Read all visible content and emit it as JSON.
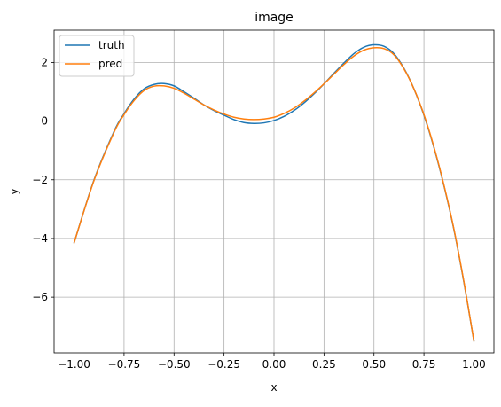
{
  "chart_data": {
    "type": "line",
    "title": "image",
    "xlabel": "x",
    "ylabel": "y",
    "xlim": [
      -1.1,
      1.1
    ],
    "ylim": [
      -7.9,
      3.1
    ],
    "grid": true,
    "legend_position": "top-left",
    "x_ticks": [
      -1.0,
      -0.75,
      -0.5,
      -0.25,
      0.0,
      0.25,
      0.5,
      0.75,
      1.0
    ],
    "x_tick_labels": [
      "−1.00",
      "−0.75",
      "−0.50",
      "−0.25",
      "0.00",
      "0.25",
      "0.50",
      "0.75",
      "1.00"
    ],
    "y_ticks": [
      -6,
      -4,
      -2,
      0,
      2
    ],
    "y_tick_labels": [
      "−6",
      "−4",
      "−2",
      "0",
      "2"
    ],
    "series": [
      {
        "name": "truth",
        "color": "#1f77b4",
        "x": [
          -1.0,
          -0.9,
          -0.8,
          -0.75,
          -0.7,
          -0.65,
          -0.6,
          -0.55,
          -0.5,
          -0.45,
          -0.4,
          -0.35,
          -0.3,
          -0.25,
          -0.2,
          -0.15,
          -0.1,
          -0.05,
          0.0,
          0.05,
          0.1,
          0.15,
          0.2,
          0.25,
          0.3,
          0.35,
          0.4,
          0.45,
          0.5,
          0.55,
          0.6,
          0.65,
          0.7,
          0.75,
          0.8,
          0.85,
          0.9,
          0.95,
          1.0
        ],
        "y": [
          -4.15,
          -2.0,
          -0.35,
          0.25,
          0.75,
          1.1,
          1.25,
          1.28,
          1.2,
          1.0,
          0.78,
          0.55,
          0.36,
          0.2,
          0.05,
          -0.05,
          -0.08,
          -0.06,
          0.02,
          0.16,
          0.36,
          0.62,
          0.93,
          1.27,
          1.63,
          1.98,
          2.3,
          2.52,
          2.6,
          2.55,
          2.3,
          1.8,
          1.1,
          0.2,
          -0.9,
          -2.2,
          -3.7,
          -5.5,
          -7.5
        ]
      },
      {
        "name": "pred",
        "color": "#ff7f0e",
        "x": [
          -1.0,
          -0.9,
          -0.8,
          -0.75,
          -0.7,
          -0.65,
          -0.6,
          -0.55,
          -0.5,
          -0.45,
          -0.4,
          -0.35,
          -0.3,
          -0.25,
          -0.2,
          -0.15,
          -0.1,
          -0.05,
          0.0,
          0.05,
          0.1,
          0.15,
          0.2,
          0.25,
          0.3,
          0.35,
          0.4,
          0.45,
          0.5,
          0.55,
          0.6,
          0.65,
          0.7,
          0.75,
          0.8,
          0.85,
          0.9,
          0.95,
          1.0
        ],
        "y": [
          -4.15,
          -2.02,
          -0.38,
          0.22,
          0.7,
          1.04,
          1.19,
          1.2,
          1.12,
          0.95,
          0.75,
          0.55,
          0.38,
          0.24,
          0.13,
          0.07,
          0.05,
          0.07,
          0.13,
          0.26,
          0.44,
          0.68,
          0.96,
          1.27,
          1.6,
          1.93,
          2.22,
          2.42,
          2.5,
          2.47,
          2.26,
          1.78,
          1.1,
          0.22,
          -0.88,
          -2.18,
          -3.68,
          -5.48,
          -7.5
        ]
      }
    ]
  }
}
